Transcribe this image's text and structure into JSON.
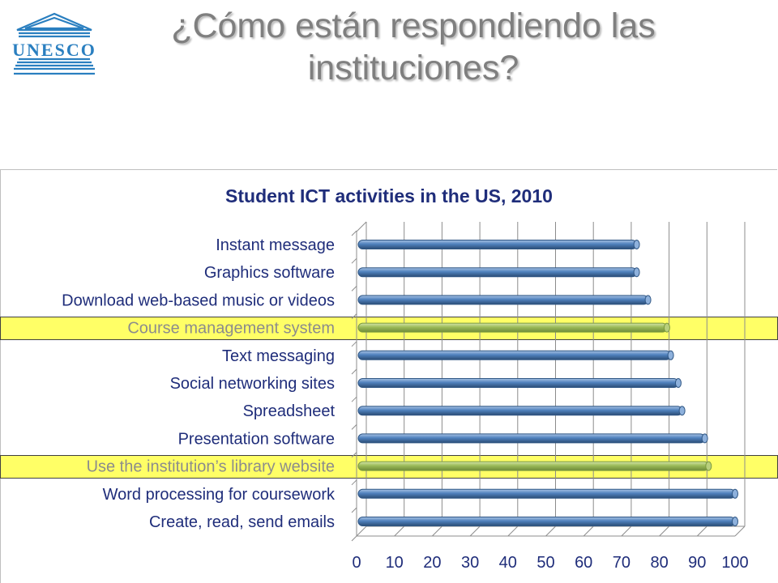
{
  "slide": {
    "title": "¿Cómo están respondiendo las instituciones?",
    "logo_text": "UNESCO"
  },
  "colors": {
    "title": "#7f7f7f",
    "chart_title": "#1f2d7a",
    "bar_blue": "#4f81bd",
    "bar_green": "#9bbb59",
    "highlight": "#ffff66",
    "label_highlighted": "#8c8c8c",
    "label": "#1f2d7a",
    "logo": "#2a7fc0"
  },
  "chart_data": {
    "type": "bar",
    "orientation": "horizontal",
    "title": "Student ICT activities in the US, 2010",
    "categories": [
      "Instant message",
      "Graphics software",
      "Download web-based music or videos",
      "Course management system",
      "Text messaging",
      "Social networking sites",
      "Spreadsheet",
      "Presentation software",
      "Use the institution’s library website",
      "Word processing for coursework",
      "Create, read, send emails"
    ],
    "values": [
      74,
      74,
      77,
      82,
      83,
      85,
      86,
      92,
      93,
      100,
      100
    ],
    "highlighted": [
      false,
      false,
      false,
      true,
      false,
      false,
      false,
      false,
      true,
      false,
      false
    ],
    "xlim": [
      0,
      100
    ],
    "xticks": [
      0,
      10,
      20,
      30,
      40,
      50,
      60,
      70,
      80,
      90,
      100
    ],
    "grid": true,
    "style": "3d cylinders"
  }
}
